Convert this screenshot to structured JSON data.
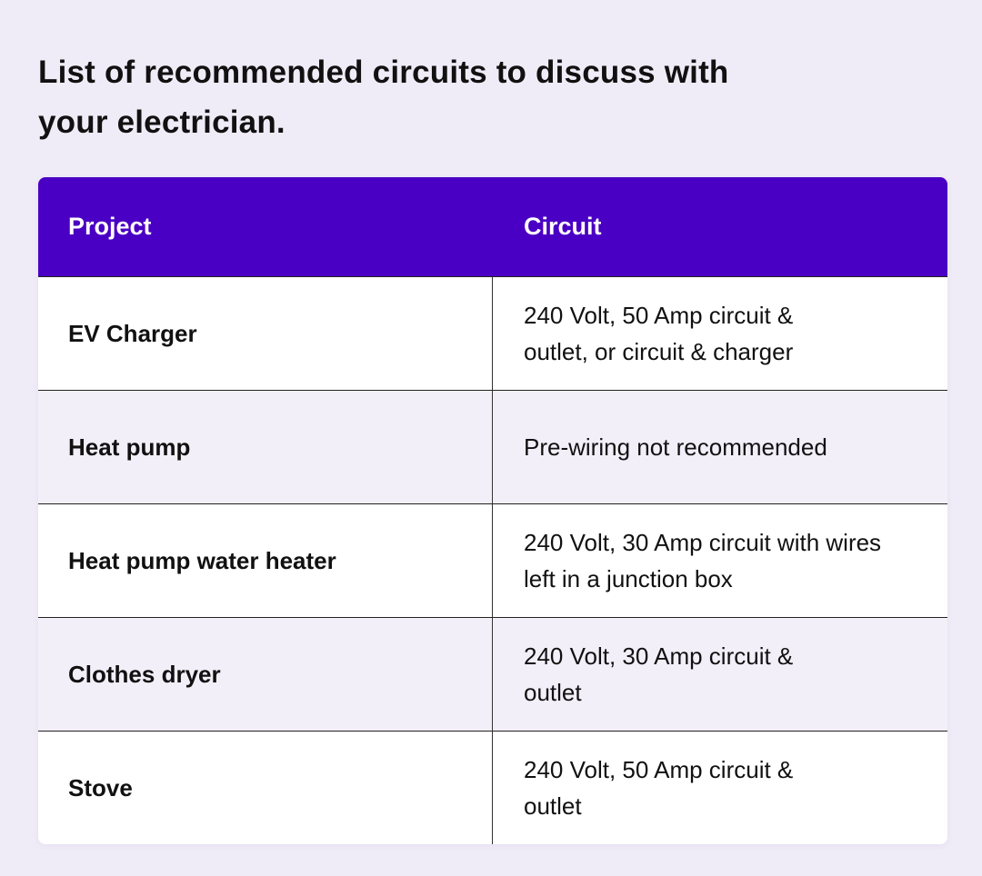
{
  "title": "List of recommended circuits to discuss with your electrician.",
  "colors": {
    "header_bg": "#4a00c4",
    "page_bg": "#efecf7",
    "alt_row_bg": "#f2eff9"
  },
  "table": {
    "headers": [
      "Project",
      "Circuit"
    ],
    "rows": [
      {
        "project": "EV Charger",
        "circuit": "240 Volt, 50 Amp circuit & outlet, or circuit & charger"
      },
      {
        "project": "Heat pump",
        "circuit": "Pre-wiring not recommended"
      },
      {
        "project": "Heat pump water heater",
        "circuit": "240 Volt, 30 Amp circuit with wires left in a junction box"
      },
      {
        "project": "Clothes dryer",
        "circuit": "240 Volt, 30 Amp circuit & outlet"
      },
      {
        "project": "Stove",
        "circuit": "240 Volt, 50 Amp circuit & outlet"
      }
    ]
  }
}
